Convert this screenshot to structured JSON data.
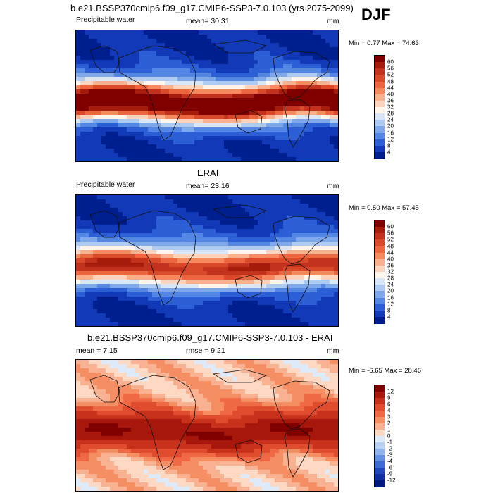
{
  "season": "DJF",
  "panels": [
    {
      "title": "b.e21.BSSP370cmip6.f09_g17.CMIP6-SSP3-7.0.103 (yrs 2075-2099)",
      "left_label": "Precipitable water",
      "center_label": "mean=  30.31",
      "units": "mm",
      "stats": "Min =   0.77 Max =  74.63",
      "palette": "abs",
      "scenario": "model"
    },
    {
      "title": "ERAI",
      "left_label": "Precipitable water",
      "center_label": "mean=  23.16",
      "units": "mm",
      "stats": "Min =   0.50 Max =  57.45",
      "palette": "abs",
      "scenario": "obs"
    },
    {
      "title": "b.e21.BSSP370cmip6.f09_g17.CMIP6-SSP3-7.0.103 - ERAI",
      "left_label": "mean =   7.15",
      "center_label": "rmse =   9.21",
      "units": "mm",
      "stats": "Min =  -6.65 Max =  28.46",
      "palette": "diff",
      "scenario": "diff"
    }
  ],
  "colorbars": {
    "abs": {
      "labels": [
        "60",
        "56",
        "52",
        "48",
        "44",
        "40",
        "36",
        "32",
        "28",
        "24",
        "20",
        "16",
        "12",
        "8",
        "4"
      ],
      "colors": [
        "#800000",
        "#a51c0d",
        "#c2321c",
        "#d94a2a",
        "#ec6640",
        "#f58a5f",
        "#f9b08d",
        "#fcd4bd",
        "#fff5ea",
        "#d8e6f7",
        "#adcaf2",
        "#7fa8eb",
        "#5486e4",
        "#2c5fd5",
        "#123ab8",
        "#001f8e"
      ]
    },
    "diff": {
      "labels": [
        "12",
        "9",
        "6",
        "4",
        "3",
        "2",
        "1",
        "0",
        "-1",
        "-2",
        "-3",
        "-4",
        "-6",
        "-9",
        "-12"
      ],
      "colors": [
        "#800000",
        "#a8170b",
        "#c8321c",
        "#df4d2e",
        "#ef6a44",
        "#f68e64",
        "#f9b291",
        "#fdd8c3",
        "#ddeafa",
        "#b7d1f3",
        "#8fb4ec",
        "#6390e1",
        "#3c6bd4",
        "#1f48bd",
        "#0c2e9e",
        "#001a80"
      ]
    }
  }
}
